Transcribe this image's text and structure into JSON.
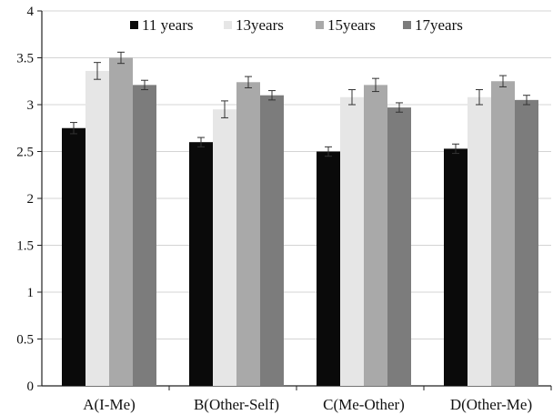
{
  "chart_data": {
    "type": "bar",
    "title": "",
    "xlabel": "",
    "ylabel": "",
    "ylim": [
      0,
      4
    ],
    "yticks": [
      "0",
      "0.5",
      "1",
      "1.5",
      "2",
      "2.5",
      "3",
      "3.5",
      "4"
    ],
    "grid": true,
    "legend_position": "top",
    "categories": [
      "A(I-Me)",
      "B(Other-Self)",
      "C(Me-Other)",
      "D(Other-Me)"
    ],
    "series": [
      {
        "name": "11 years",
        "color": "#0a0a0a",
        "values": [
          2.75,
          2.6,
          2.5,
          2.53
        ],
        "errors": [
          0.06,
          0.05,
          0.05,
          0.05
        ]
      },
      {
        "name": "13years",
        "color": "#e6e6e6",
        "values": [
          3.36,
          2.95,
          3.08,
          3.08
        ],
        "errors": [
          0.09,
          0.09,
          0.08,
          0.08
        ]
      },
      {
        "name": "15years",
        "color": "#a9a9a9",
        "values": [
          3.5,
          3.24,
          3.21,
          3.25
        ],
        "errors": [
          0.06,
          0.06,
          0.07,
          0.06
        ]
      },
      {
        "name": "17years",
        "color": "#7c7c7c",
        "values": [
          3.21,
          3.1,
          2.97,
          3.05
        ],
        "errors": [
          0.05,
          0.05,
          0.05,
          0.05
        ]
      }
    ]
  }
}
